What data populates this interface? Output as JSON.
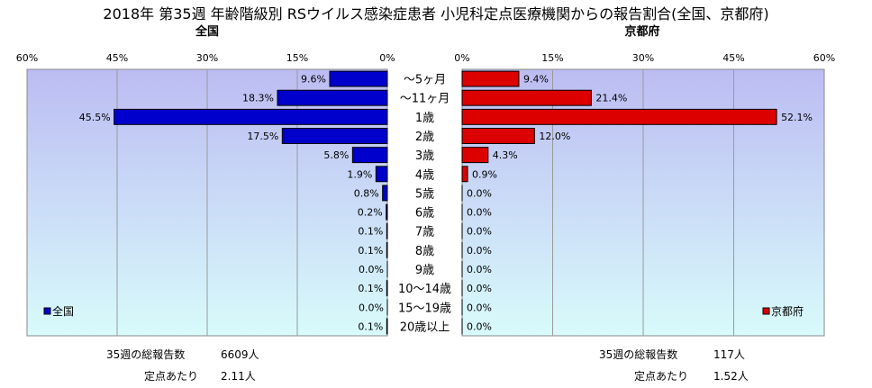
{
  "title": "2018年 第35週 年齢階級別 RSウイルス感染症患者 小児科定点医療機関からの報告割合(全国、京都府)",
  "chart_data": {
    "type": "bar",
    "categories": [
      "～5ヶ月",
      "～11ヶ月",
      "1歳",
      "2歳",
      "3歳",
      "4歳",
      "5歳",
      "6歳",
      "7歳",
      "8歳",
      "9歳",
      "10～14歳",
      "15～19歳",
      "20歳以上"
    ],
    "x_ticks": [
      "60%",
      "45%",
      "30%",
      "15%",
      "0%"
    ],
    "x_ticks_right": [
      "0%",
      "15%",
      "30%",
      "45%",
      "60%"
    ],
    "xlim": [
      0,
      60
    ],
    "grid": true,
    "series": [
      {
        "name": "全国",
        "subtitle": "全国",
        "color": "#0000cc",
        "values": [
          9.6,
          18.3,
          45.5,
          17.5,
          5.8,
          1.9,
          0.8,
          0.2,
          0.1,
          0.1,
          0.0,
          0.1,
          0.0,
          0.1
        ],
        "labels": [
          "9.6%",
          "18.3%",
          "45.5%",
          "17.5%",
          "5.8%",
          "1.9%",
          "0.8%",
          "0.2%",
          "0.1%",
          "0.1%",
          "0.0%",
          "0.1%",
          "0.0%",
          "0.1%"
        ],
        "legend_position": "bottom-left"
      },
      {
        "name": "京都府",
        "subtitle": "京都府",
        "color": "#dd0000",
        "values": [
          9.4,
          21.4,
          52.1,
          12.0,
          4.3,
          0.9,
          0.0,
          0.0,
          0.0,
          0.0,
          0.0,
          0.0,
          0.0,
          0.0
        ],
        "labels": [
          "9.4%",
          "21.4%",
          "52.1%",
          "12.0%",
          "4.3%",
          "0.9%",
          "0.0%",
          "0.0%",
          "0.0%",
          "0.0%",
          "0.0%",
          "0.0%",
          "0.0%",
          "0.0%"
        ],
        "legend_position": "bottom-right"
      }
    ]
  },
  "footer": {
    "left": {
      "total_label": "35週の総報告数",
      "total_value": "6609人",
      "per_label": "定点あたり",
      "per_value": "2.11人"
    },
    "right": {
      "total_label": "35週の総報告数",
      "total_value": "117人",
      "per_label": "定点あたり",
      "per_value": "1.52人"
    }
  }
}
